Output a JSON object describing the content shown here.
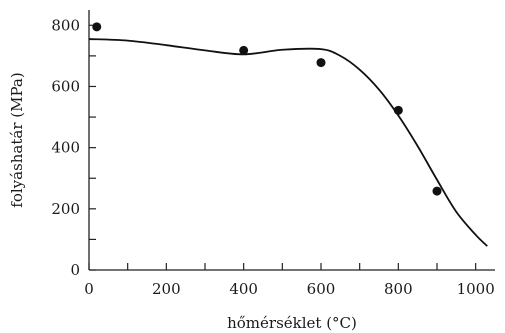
{
  "chart_data": {
    "type": "scatter",
    "title": "",
    "xlabel": "hőmérséklet (°C)",
    "ylabel": "folyáshatár (MPa)",
    "xlim": [
      0,
      1050
    ],
    "ylim": [
      0,
      850
    ],
    "xticks": [
      0,
      200,
      400,
      600,
      800,
      1000
    ],
    "yticks": [
      0,
      200,
      400,
      600,
      800
    ],
    "grid": false,
    "series": [
      {
        "kind": "points",
        "x": [
          20,
          400,
          600,
          800,
          900
        ],
        "y": [
          795,
          718,
          678,
          522,
          258
        ]
      },
      {
        "kind": "line",
        "x": [
          0,
          100,
          200,
          300,
          400,
          500,
          600,
          650,
          700,
          750,
          800,
          850,
          900,
          950,
          1000,
          1030
        ],
        "y": [
          755,
          750,
          735,
          718,
          705,
          720,
          722,
          700,
          655,
          590,
          505,
          405,
          295,
          190,
          115,
          78
        ]
      }
    ],
    "colors": {
      "marks": "#111111",
      "axis": "#222222"
    }
  }
}
